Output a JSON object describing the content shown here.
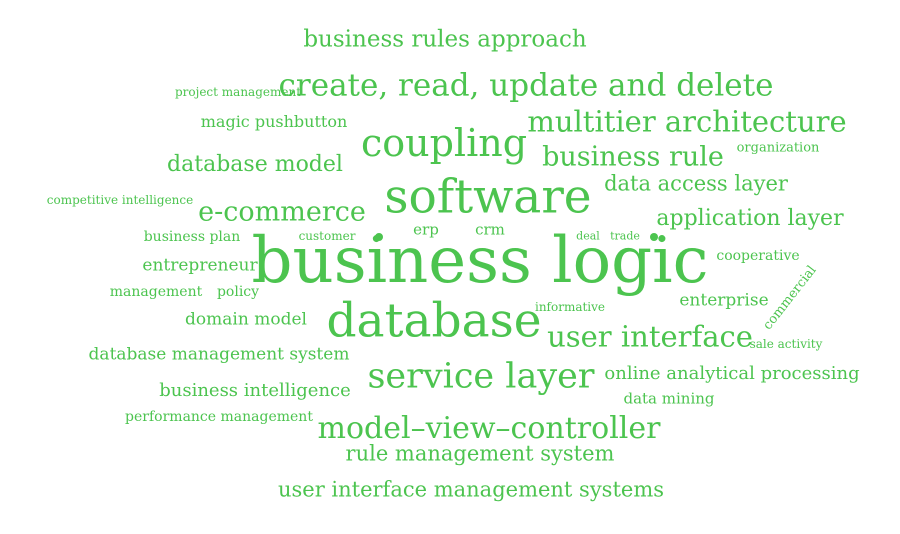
{
  "color": "#4cc44f",
  "words": [
    {
      "text": "business rules approach"
    },
    {
      "text": "project management"
    },
    {
      "text": "create, read, update and delete"
    },
    {
      "text": "magic pushbutton"
    },
    {
      "text": "multitier architecture"
    },
    {
      "text": "coupling"
    },
    {
      "text": "business rule"
    },
    {
      "text": "organization"
    },
    {
      "text": "database model"
    },
    {
      "text": "data access layer"
    },
    {
      "text": "software"
    },
    {
      "text": "competitive intelligence"
    },
    {
      "text": "e-commerce"
    },
    {
      "text": "application layer"
    },
    {
      "text": "business plan"
    },
    {
      "text": "customer"
    },
    {
      "text": "erp"
    },
    {
      "text": "crm"
    },
    {
      "text": "deal"
    },
    {
      "text": "trade"
    },
    {
      "text": "business logic"
    },
    {
      "text": "cooperative"
    },
    {
      "text": "entrepreneur"
    },
    {
      "text": "commercial"
    },
    {
      "text": "management"
    },
    {
      "text": "policy"
    },
    {
      "text": "enterprise"
    },
    {
      "text": "informative"
    },
    {
      "text": "domain model"
    },
    {
      "text": "database"
    },
    {
      "text": "user interface"
    },
    {
      "text": "sale activity"
    },
    {
      "text": "database management system"
    },
    {
      "text": "service layer"
    },
    {
      "text": "online analytical processing"
    },
    {
      "text": "business intelligence"
    },
    {
      "text": "data mining"
    },
    {
      "text": "performance management"
    },
    {
      "text": "model–view–controller"
    },
    {
      "text": "rule management system"
    },
    {
      "text": "user interface management systems"
    }
  ]
}
